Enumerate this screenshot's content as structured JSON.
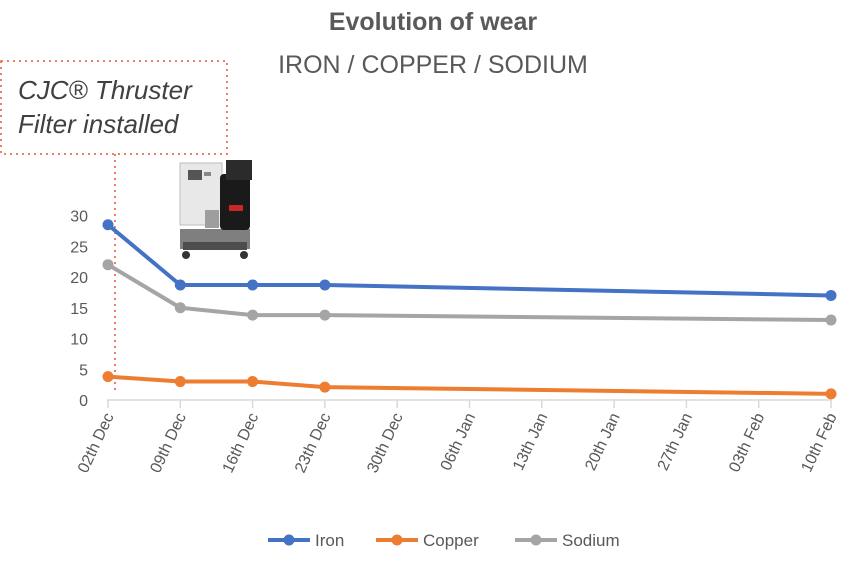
{
  "chart_data": {
    "type": "line",
    "title": "Evolution of wear",
    "subtitle": "IRON / COPPER / SODIUM",
    "annotation": [
      "CJC® Thruster",
      "Filter installed"
    ],
    "categories": [
      "02th Dec",
      "09th Dec",
      "16th Dec",
      "23th Dec",
      "30th Dec",
      "06th Jan",
      "13th Jan",
      "20th Jan",
      "27th Jan",
      "03th Feb",
      "10th Feb"
    ],
    "series": [
      {
        "name": "Iron",
        "color": "#4472C4",
        "values": [
          28.5,
          18.7,
          18.7,
          18.7,
          null,
          null,
          null,
          null,
          null,
          null,
          17.0
        ]
      },
      {
        "name": "Copper",
        "color": "#ED7D31",
        "values": [
          3.8,
          3.0,
          3.0,
          2.1,
          null,
          null,
          null,
          null,
          null,
          null,
          1.0
        ]
      },
      {
        "name": "Sodium",
        "color": "#A5A5A5",
        "values": [
          22.0,
          15.0,
          13.8,
          13.8,
          null,
          null,
          null,
          null,
          null,
          null,
          13.0
        ]
      }
    ],
    "yticks": [
      0,
      5,
      10,
      15,
      20,
      25,
      30
    ],
    "ylim": [
      0,
      30
    ],
    "grid": false,
    "legend": "bottom",
    "annotation_color": "#E0563B",
    "axis_color": "#D9D9D9"
  },
  "image": {
    "icon": "filter-unit-icon"
  }
}
